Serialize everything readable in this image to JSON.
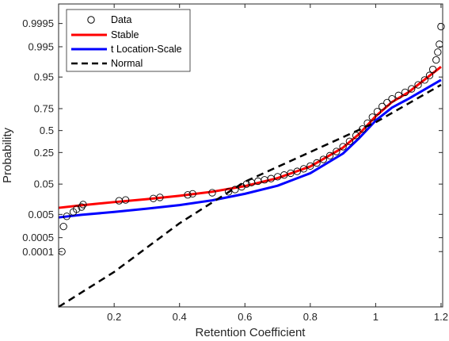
{
  "chart_data": {
    "type": "scatter",
    "title": "",
    "xlabel": "Retention Coefficient",
    "ylabel": "Probability",
    "xlim": [
      0.03,
      1.205
    ],
    "ylim_probability": [
      3e-08,
      0.99995
    ],
    "y_scale": "normal-probability",
    "grid": false,
    "legend_position": "top-left",
    "x_ticks": [
      {
        "value": 0.2,
        "label": "0.2"
      },
      {
        "value": 0.4,
        "label": "0.4"
      },
      {
        "value": 0.6,
        "label": "0.6"
      },
      {
        "value": 0.8,
        "label": "0.8"
      },
      {
        "value": 1.0,
        "label": "1"
      },
      {
        "value": 1.2,
        "label": "1.2"
      }
    ],
    "y_ticks": [
      {
        "value": 0.9995,
        "label": "0.9995"
      },
      {
        "value": 0.995,
        "label": "0.995"
      },
      {
        "value": 0.95,
        "label": "0.95"
      },
      {
        "value": 0.75,
        "label": "0.75"
      },
      {
        "value": 0.5,
        "label": "0.5"
      },
      {
        "value": 0.25,
        "label": "0.25"
      },
      {
        "value": 0.05,
        "label": "0.05"
      },
      {
        "value": 0.005,
        "label": "0.005"
      },
      {
        "value": 0.0005,
        "label": "0.0005"
      },
      {
        "value": 0.0001,
        "label": "0.0001"
      }
    ],
    "series": [
      {
        "name": "Data",
        "kind": "markers",
        "marker": "circle",
        "color": "#000000",
        "points": [
          {
            "x": 0.04,
            "y": 0.0001
          },
          {
            "x": 0.045,
            "y": 0.0016
          },
          {
            "x": 0.055,
            "y": 0.0042
          },
          {
            "x": 0.075,
            "y": 0.0062
          },
          {
            "x": 0.085,
            "y": 0.0078
          },
          {
            "x": 0.1,
            "y": 0.0094
          },
          {
            "x": 0.105,
            "y": 0.0115
          },
          {
            "x": 0.215,
            "y": 0.0155
          },
          {
            "x": 0.235,
            "y": 0.0165
          },
          {
            "x": 0.32,
            "y": 0.0185
          },
          {
            "x": 0.34,
            "y": 0.02
          },
          {
            "x": 0.425,
            "y": 0.024
          },
          {
            "x": 0.44,
            "y": 0.026
          },
          {
            "x": 0.5,
            "y": 0.028
          },
          {
            "x": 0.55,
            "y": 0.03
          },
          {
            "x": 0.57,
            "y": 0.035
          },
          {
            "x": 0.59,
            "y": 0.042
          },
          {
            "x": 0.605,
            "y": 0.05
          },
          {
            "x": 0.62,
            "y": 0.055
          },
          {
            "x": 0.64,
            "y": 0.06
          },
          {
            "x": 0.66,
            "y": 0.065
          },
          {
            "x": 0.68,
            "y": 0.07
          },
          {
            "x": 0.7,
            "y": 0.078
          },
          {
            "x": 0.72,
            "y": 0.086
          },
          {
            "x": 0.74,
            "y": 0.095
          },
          {
            "x": 0.76,
            "y": 0.105
          },
          {
            "x": 0.78,
            "y": 0.12
          },
          {
            "x": 0.8,
            "y": 0.138
          },
          {
            "x": 0.82,
            "y": 0.16
          },
          {
            "x": 0.84,
            "y": 0.188
          },
          {
            "x": 0.86,
            "y": 0.22
          },
          {
            "x": 0.88,
            "y": 0.26
          },
          {
            "x": 0.9,
            "y": 0.31
          },
          {
            "x": 0.92,
            "y": 0.37
          },
          {
            "x": 0.94,
            "y": 0.44
          },
          {
            "x": 0.96,
            "y": 0.52
          },
          {
            "x": 0.975,
            "y": 0.59
          },
          {
            "x": 0.99,
            "y": 0.66
          },
          {
            "x": 1.005,
            "y": 0.72
          },
          {
            "x": 1.02,
            "y": 0.77
          },
          {
            "x": 1.035,
            "y": 0.805
          },
          {
            "x": 1.05,
            "y": 0.835
          },
          {
            "x": 1.07,
            "y": 0.86
          },
          {
            "x": 1.09,
            "y": 0.88
          },
          {
            "x": 1.11,
            "y": 0.9
          },
          {
            "x": 1.13,
            "y": 0.92
          },
          {
            "x": 1.15,
            "y": 0.94
          },
          {
            "x": 1.165,
            "y": 0.955
          },
          {
            "x": 1.175,
            "y": 0.97
          },
          {
            "x": 1.185,
            "y": 0.985
          },
          {
            "x": 1.19,
            "y": 0.992
          },
          {
            "x": 1.195,
            "y": 0.996
          },
          {
            "x": 1.2,
            "y": 0.9993
          }
        ]
      },
      {
        "name": "Stable",
        "kind": "line",
        "color": "#ff0000",
        "points": [
          {
            "x": 0.03,
            "y": 0.0088
          },
          {
            "x": 0.1,
            "y": 0.0108
          },
          {
            "x": 0.2,
            "y": 0.014
          },
          {
            "x": 0.3,
            "y": 0.0175
          },
          {
            "x": 0.4,
            "y": 0.0225
          },
          {
            "x": 0.5,
            "y": 0.03
          },
          {
            "x": 0.6,
            "y": 0.044
          },
          {
            "x": 0.7,
            "y": 0.072
          },
          {
            "x": 0.8,
            "y": 0.135
          },
          {
            "x": 0.9,
            "y": 0.3
          },
          {
            "x": 0.95,
            "y": 0.46
          },
          {
            "x": 1.0,
            "y": 0.67
          },
          {
            "x": 1.05,
            "y": 0.81
          },
          {
            "x": 1.1,
            "y": 0.88
          },
          {
            "x": 1.2,
            "y": 0.975
          }
        ]
      },
      {
        "name": "t Location-Scale",
        "kind": "line",
        "color": "#0000ff",
        "points": [
          {
            "x": 0.03,
            "y": 0.0038
          },
          {
            "x": 0.1,
            "y": 0.0048
          },
          {
            "x": 0.2,
            "y": 0.0062
          },
          {
            "x": 0.3,
            "y": 0.0082
          },
          {
            "x": 0.4,
            "y": 0.011
          },
          {
            "x": 0.5,
            "y": 0.016
          },
          {
            "x": 0.6,
            "y": 0.026
          },
          {
            "x": 0.7,
            "y": 0.045
          },
          {
            "x": 0.8,
            "y": 0.095
          },
          {
            "x": 0.9,
            "y": 0.24
          },
          {
            "x": 0.95,
            "y": 0.41
          },
          {
            "x": 1.0,
            "y": 0.62
          },
          {
            "x": 1.05,
            "y": 0.76
          },
          {
            "x": 1.1,
            "y": 0.835
          },
          {
            "x": 1.2,
            "y": 0.94
          }
        ]
      },
      {
        "name": "Normal",
        "kind": "line",
        "color": "#000000",
        "dashed": true,
        "points": [
          {
            "x": 0.03,
            "y": 3e-08
          },
          {
            "x": 0.2,
            "y": 7e-06
          },
          {
            "x": 0.4,
            "y": 0.0022
          },
          {
            "x": 0.6,
            "y": 0.058
          },
          {
            "x": 0.8,
            "y": 0.255
          },
          {
            "x": 1.0,
            "y": 0.6
          },
          {
            "x": 1.2,
            "y": 0.92
          }
        ]
      }
    ]
  },
  "legend": {
    "items": [
      {
        "label": "Data"
      },
      {
        "label": "Stable"
      },
      {
        "label": "t Location-Scale"
      },
      {
        "label": "Normal"
      }
    ]
  }
}
